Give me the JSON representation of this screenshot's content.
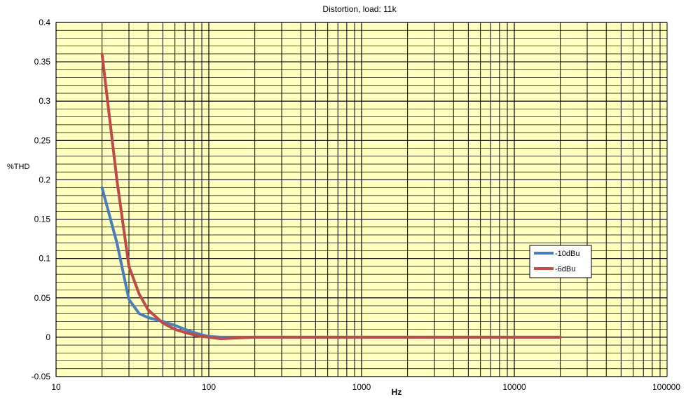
{
  "chart_data": {
    "type": "line",
    "title": "Distortion, load: 11k",
    "xlabel": "Hz",
    "ylabel": "%THD",
    "xscale": "log",
    "xlim": [
      10,
      100000
    ],
    "ylim": [
      -0.05,
      0.4
    ],
    "y_major_step": 0.05,
    "y_minor_step": 0.01,
    "x_ticks": [
      10,
      100,
      1000,
      10000,
      100000
    ],
    "x_tick_labels": [
      "10",
      "100",
      "1000",
      "10000",
      "100000"
    ],
    "y_ticks": [
      -0.05,
      0,
      0.05,
      0.1,
      0.15,
      0.2,
      0.25,
      0.3,
      0.35,
      0.4
    ],
    "y_tick_labels": [
      "-0.05",
      "0",
      "0.05",
      "0.1",
      "0.15",
      "0.2",
      "0.25",
      "0.3",
      "0.35",
      "0.4"
    ],
    "grid": true,
    "plot_background": "#ffffc0",
    "legend_position": "right",
    "series": [
      {
        "name": "-10dBu",
        "color": "#4a7ebb",
        "x": [
          20,
          25,
          30,
          35,
          40,
          50,
          60,
          70,
          80,
          90,
          100,
          120,
          150,
          200,
          500,
          1000,
          5000,
          10000,
          20000
        ],
        "y": [
          0.19,
          0.12,
          0.048,
          0.03,
          0.025,
          0.02,
          0.015,
          0.01,
          0.006,
          0.003,
          0.001,
          0.0,
          0.0,
          0.0,
          0.0,
          0.0,
          0.0,
          0.0,
          0.0
        ]
      },
      {
        "name": "-6dBu",
        "color": "#be4b48",
        "x": [
          20,
          25,
          30,
          35,
          40,
          50,
          60,
          70,
          80,
          90,
          100,
          120,
          150,
          200,
          500,
          1000,
          5000,
          10000,
          20000
        ],
        "y": [
          0.36,
          0.2,
          0.09,
          0.055,
          0.035,
          0.018,
          0.01,
          0.006,
          0.003,
          0.001,
          0.0,
          -0.002,
          -0.001,
          0.0,
          0.0,
          0.0,
          0.0,
          0.0,
          0.0
        ]
      }
    ]
  }
}
